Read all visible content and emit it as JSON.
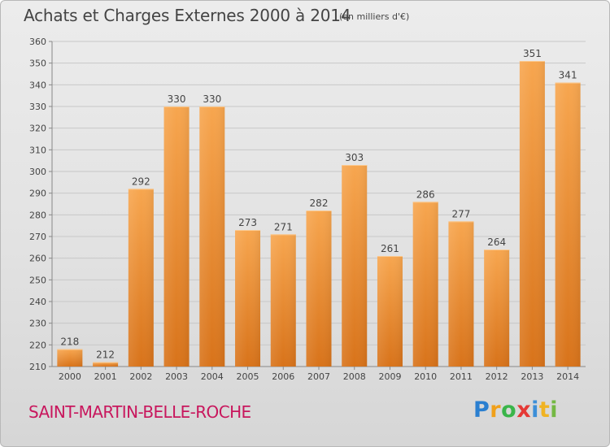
{
  "title": "Achats et Charges Externes 2000 à 2014",
  "subtitle": "(en milliers d'€)",
  "commune": "SAINT-MARTIN-BELLE-ROCHE",
  "logo": {
    "text": "Proxiti",
    "colors": [
      "#2a7fd0",
      "#f0a01a",
      "#3ab54a",
      "#e53935",
      "#3c8fd8",
      "#f0b323",
      "#74b843"
    ]
  },
  "colors": {
    "bar_light": "#f7a64f",
    "bar_dark": "#d8731a",
    "grid": "#c8c8c8",
    "text": "#444444",
    "commune": "#c8175d"
  },
  "chart_data": {
    "type": "bar",
    "title": "Achats et Charges Externes 2000 à 2014",
    "subtitle": "(en milliers d'€)",
    "xlabel": "",
    "ylabel": "",
    "categories": [
      "2000",
      "2001",
      "2002",
      "2003",
      "2004",
      "2005",
      "2006",
      "2007",
      "2008",
      "2009",
      "2010",
      "2011",
      "2012",
      "2013",
      "2014"
    ],
    "values": [
      218,
      212,
      292,
      330,
      330,
      273,
      271,
      282,
      303,
      261,
      286,
      277,
      264,
      351,
      341
    ],
    "ylim": [
      210,
      360
    ],
    "yticks": [
      210,
      220,
      230,
      240,
      250,
      260,
      270,
      280,
      290,
      300,
      310,
      320,
      330,
      340,
      350,
      360
    ],
    "grid": true,
    "data_labels": true
  }
}
